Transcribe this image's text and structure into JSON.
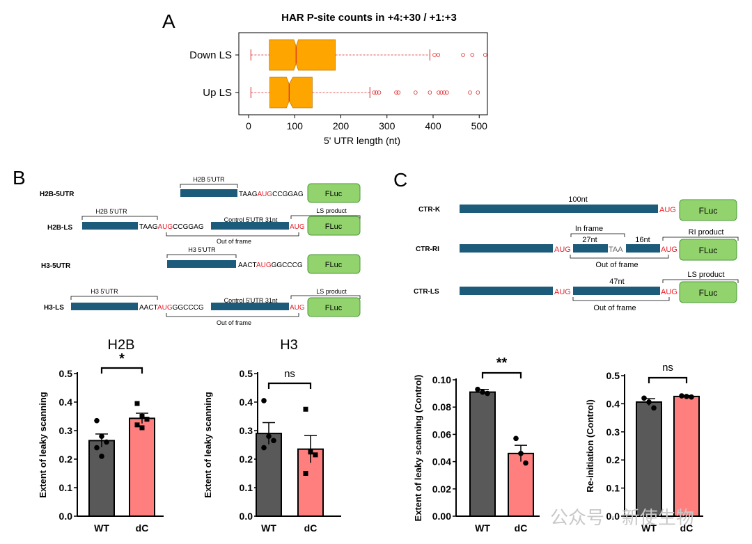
{
  "panels": {
    "A": "A",
    "B": "B",
    "C": "C"
  },
  "panel_a": {
    "chart_data": {
      "type": "boxplot",
      "title": "HAR P-site counts in +4:+30 / +1:+3",
      "xlabel": "5' UTR length (nt)",
      "xlim": [
        0,
        510
      ],
      "xticks": [
        0,
        100,
        200,
        300,
        400,
        500
      ],
      "notched": true,
      "colors": {
        "box": "#FFA500",
        "median": "#d62728",
        "whisker": "#d62728"
      },
      "series": [
        {
          "name": "Down LS",
          "whisker_low": 5,
          "q1": 45,
          "median": 103,
          "q3": 188,
          "whisker_high": 393,
          "notch_low": 98,
          "notch_high": 108,
          "outliers": [
            403,
            411,
            465,
            485,
            513
          ]
        },
        {
          "name": "Up LS",
          "whisker_low": 5,
          "q1": 46,
          "median": 88,
          "q3": 138,
          "whisker_high": 263,
          "notch_low": 82,
          "notch_high": 96,
          "outliers": [
            272,
            277,
            283,
            320,
            325,
            362,
            393,
            412,
            418,
            424,
            430,
            480,
            497
          ]
        }
      ]
    }
  },
  "panel_b": {
    "constructs": [
      {
        "name": "H2B-5UTR",
        "utr_label": "H2B 5'UTR",
        "seq_pre": "TAAG",
        "aug": "AUG",
        "seq_post": "CCGGAG",
        "reporter": "FLuc"
      },
      {
        "name": "H2B-LS",
        "utr_label": "H2B 5'UTR",
        "seq_pre": "TAAG",
        "aug": "AUG",
        "seq_post": "CCGGAG",
        "control_label": "Control 5'UTR 31nt",
        "aug2": "AUG",
        "product_label": "LS product",
        "frame_label": "Out of frame",
        "reporter": "FLuc"
      },
      {
        "name": "H3-5UTR",
        "utr_label": "H3 5'UTR",
        "seq_pre": "AACT",
        "aug": "AUG",
        "seq_post": "GGCCCG",
        "reporter": "FLuc"
      },
      {
        "name": "H3-LS",
        "utr_label": "H3 5'UTR",
        "seq_pre": "AACT",
        "aug": "AUG",
        "seq_post": "GGCCCG",
        "control_label": "Control 5'UTR 31nt",
        "aug2": "AUG",
        "product_label": "LS product",
        "frame_label": "Out of frame",
        "reporter": "FLuc"
      }
    ],
    "charts": [
      {
        "type": "bar",
        "title": "H2B",
        "ylabel": "Extent of leaky scanning",
        "categories": [
          "WT",
          "dC"
        ],
        "values": [
          0.265,
          0.343
        ],
        "errors": [
          0.023,
          0.018
        ],
        "ylim": [
          0,
          0.5
        ],
        "yticks": [
          "0.0",
          "0.1",
          "0.2",
          "0.3",
          "0.4",
          "0.5"
        ],
        "significance": "*",
        "points": [
          [
            0.335,
            0.28,
            0.26,
            0.24,
            0.21
          ],
          [
            0.395,
            0.35,
            0.34,
            0.32,
            0.31
          ]
        ],
        "markers": [
          "circle",
          "square"
        ],
        "colors": [
          "#595959",
          "#ff7f7f"
        ]
      },
      {
        "type": "bar",
        "title": "H3",
        "ylabel": "Extent of leaky scanning",
        "categories": [
          "WT",
          "dC"
        ],
        "values": [
          0.29,
          0.235
        ],
        "errors": [
          0.038,
          0.048
        ],
        "ylim": [
          0,
          0.5
        ],
        "yticks": [
          "0.0",
          "0.1",
          "0.2",
          "0.3",
          "0.4",
          "0.5"
        ],
        "significance": "ns",
        "points": [
          [
            0.405,
            0.28,
            0.265,
            0.24
          ],
          [
            0.375,
            0.225,
            0.215,
            0.15
          ]
        ],
        "markers": [
          "circle",
          "square"
        ],
        "colors": [
          "#595959",
          "#ff7f7f"
        ]
      }
    ]
  },
  "panel_c": {
    "constructs": [
      {
        "name": "CTR-K",
        "label_top": "100nt",
        "aug": "AUG",
        "reporter": "FLuc"
      },
      {
        "name": "CTR-RI",
        "aug1": "AUG",
        "inframe_label": "In frame",
        "seg1_label": "27nt",
        "stop": "TAA",
        "seg2_label": "16nt",
        "aug2": "AUG",
        "product_label": "RI product",
        "frame_label": "Out of frame",
        "reporter": "FLuc"
      },
      {
        "name": "CTR-LS",
        "aug1": "AUG",
        "seg_label": "47nt",
        "aug2": "AUG",
        "product_label": "LS product",
        "frame_label": "Out of frame",
        "reporter": "FLuc"
      }
    ],
    "charts": [
      {
        "type": "bar",
        "ylabel": "Extent of leaky scanning (Control)",
        "categories": [
          "WT",
          "dC"
        ],
        "values": [
          0.091,
          0.046
        ],
        "errors": [
          0.002,
          0.006
        ],
        "ylim": [
          0,
          0.1
        ],
        "yticks": [
          "0.00",
          "0.02",
          "0.04",
          "0.06",
          "0.08",
          "0.10"
        ],
        "significance": "**",
        "points": [
          [
            0.093,
            0.091,
            0.09
          ],
          [
            0.057,
            0.046,
            0.039
          ]
        ],
        "markers": [
          "circle",
          "circle"
        ],
        "colors": [
          "#595959",
          "#ff7f7f"
        ]
      },
      {
        "type": "bar",
        "ylabel": "Re-initiation (Control)",
        "categories": [
          "WT",
          "dC"
        ],
        "values": [
          0.406,
          0.426
        ],
        "errors": [
          0.012,
          0.003
        ],
        "ylim": [
          0,
          0.5
        ],
        "yticks": [
          "0.0",
          "0.1",
          "0.2",
          "0.3",
          "0.4",
          "0.5"
        ],
        "significance": "ns",
        "points": [
          [
            0.42,
            0.406,
            0.385
          ],
          [
            0.428,
            0.426,
            0.424
          ]
        ],
        "markers": [
          "circle",
          "circle"
        ],
        "colors": [
          "#595959",
          "#ff7f7f"
        ]
      }
    ]
  },
  "watermark": "公众号 · 新使生物"
}
